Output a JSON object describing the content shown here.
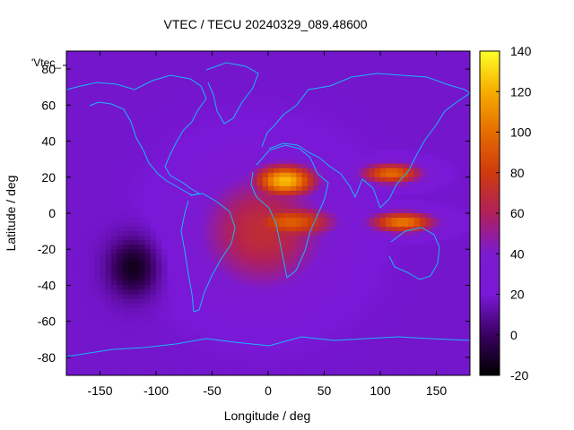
{
  "chart_data": {
    "type": "heatmap",
    "title": "VTEC / TECU 20240329_089.48600",
    "xlabel": "Longitude / deg",
    "ylabel": "Latitude / deg",
    "xlim": [
      -180,
      180
    ],
    "ylim": [
      -90,
      90
    ],
    "xticks": [
      -150,
      -100,
      -50,
      0,
      50,
      100,
      150
    ],
    "yticks": [
      -80,
      -60,
      -40,
      -20,
      0,
      20,
      40,
      60,
      80
    ],
    "colorbar": {
      "label": "",
      "range": [
        -20,
        140
      ],
      "ticks": [
        -20,
        0,
        20,
        40,
        60,
        80,
        100,
        120,
        140
      ]
    },
    "legend": "'Vtec_",
    "field_features": [
      {
        "name": "background",
        "lon": 0,
        "lat": 0,
        "value": 18
      },
      {
        "name": "equatorial-anomaly-africa-north",
        "lon": 15,
        "lat": 18,
        "value": 125
      },
      {
        "name": "equatorial-anomaly-africa-south",
        "lon": 20,
        "lat": -5,
        "value": 95
      },
      {
        "name": "crest-asia-north",
        "lon": 110,
        "lat": 22,
        "value": 100
      },
      {
        "name": "crest-asia-south",
        "lon": 120,
        "lat": -5,
        "value": 105
      },
      {
        "name": "broad-daytime-ionosphere",
        "lon": -5,
        "lat": -10,
        "value": 70
      },
      {
        "name": "pacific-depletion",
        "lon": -120,
        "lat": -30,
        "value": -15
      }
    ]
  }
}
